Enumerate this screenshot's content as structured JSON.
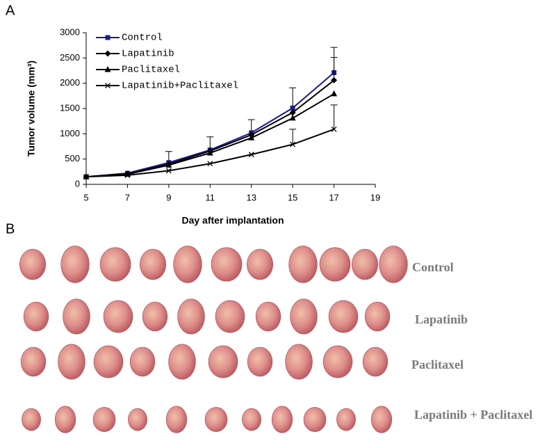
{
  "chart_data": {
    "type": "line",
    "panel_label": "A",
    "x_label": "Day after implantation",
    "y_label": "Tumor volume (mm³)",
    "x": [
      5,
      7,
      9,
      11,
      13,
      15,
      17
    ],
    "xlim": [
      5,
      19
    ],
    "xticks": [
      5,
      7,
      9,
      11,
      13,
      15,
      17,
      19
    ],
    "ylim": [
      0,
      3000
    ],
    "yticks": [
      0,
      500,
      1000,
      1500,
      2000,
      2500,
      3000
    ],
    "grid": false,
    "legend": "upper-left",
    "series": [
      {
        "name": "Control",
        "color": "#1c1c8a",
        "marker": "square",
        "values": [
          150,
          220,
          430,
          680,
          1020,
          1510,
          2210
        ],
        "errors": [
          null,
          null,
          220,
          260,
          260,
          400,
          500
        ]
      },
      {
        "name": "Lapatinib",
        "color": "#000000",
        "marker": "diamond",
        "values": [
          150,
          210,
          400,
          660,
          980,
          1420,
          2060
        ],
        "errors": [
          null,
          null,
          null,
          null,
          null,
          null,
          450
        ]
      },
      {
        "name": "Paclitaxel",
        "color": "#000000",
        "marker": "triangle",
        "values": [
          150,
          200,
          380,
          620,
          920,
          1310,
          1790
        ],
        "errors": [
          null,
          null,
          null,
          null,
          null,
          null,
          null
        ]
      },
      {
        "name": "Lapatinib+Paclitaxel",
        "color": "#000000",
        "marker": "x",
        "values": [
          150,
          180,
          270,
          410,
          590,
          790,
          1090
        ],
        "errors": [
          null,
          null,
          null,
          null,
          null,
          300,
          480
        ]
      }
    ]
  },
  "photo_panel": {
    "panel_label": "B",
    "rows": [
      "Control",
      "Lapatinib",
      "Paclitaxel",
      "Lapatinib + Paclitaxel"
    ]
  }
}
